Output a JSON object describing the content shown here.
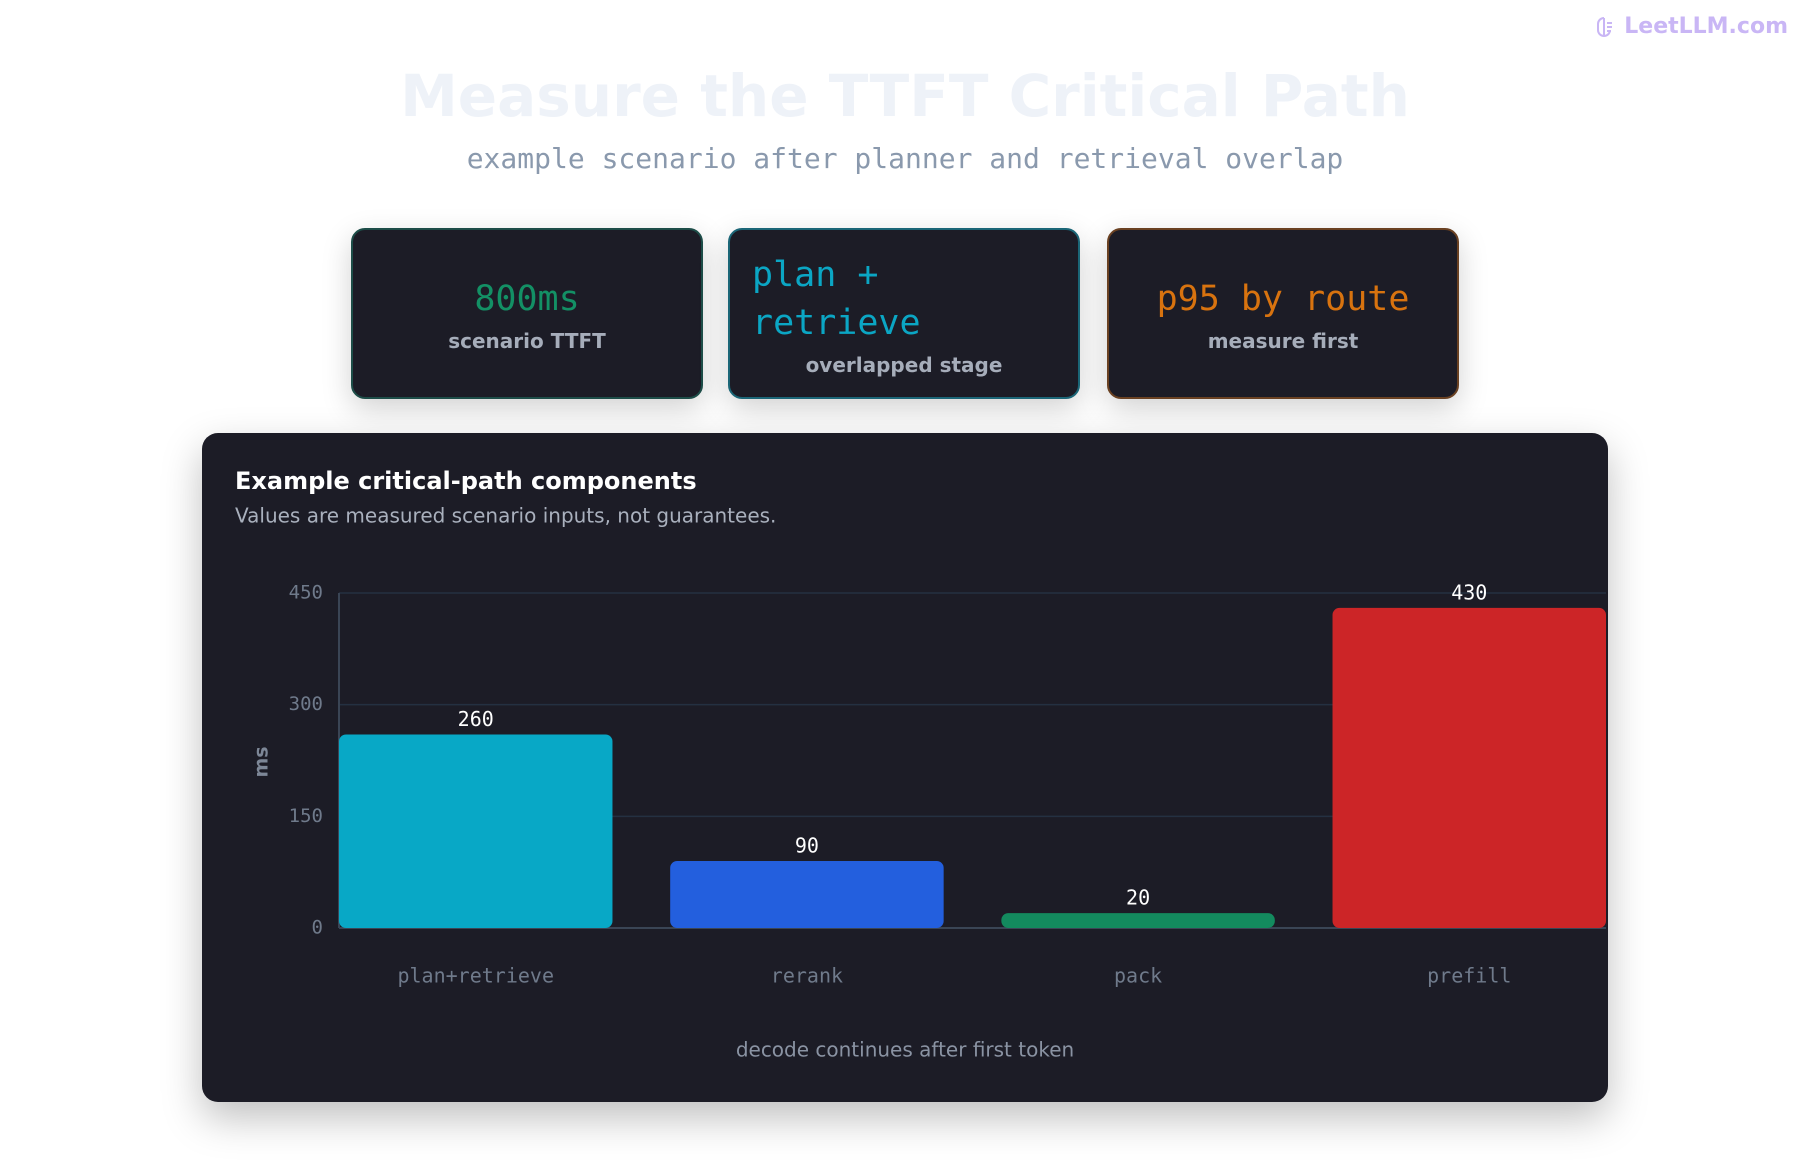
{
  "brand": "LeetLLM.com",
  "header": {
    "title": "Measure the TTFT Critical Path",
    "subtitle": "example scenario after planner and retrieval overlap"
  },
  "cards": [
    {
      "value": "800ms",
      "label": "scenario TTFT",
      "color": "#139065",
      "border": "#1d4d48"
    },
    {
      "value": "plan + retrieve",
      "label": "overlapped stage",
      "color": "#0ba6c4",
      "border": "#1b6677"
    },
    {
      "value": "p95 by route",
      "label": "measure first",
      "color": "#d8730f",
      "border": "#6a4122"
    }
  ],
  "chart_data": {
    "type": "bar",
    "title": "Example critical-path components",
    "subtitle": "Values are measured scenario inputs, not guarantees.",
    "y_label": "ms",
    "categories": [
      "plan+retrieve",
      "rerank",
      "pack",
      "prefill"
    ],
    "values": [
      260,
      90,
      20,
      430
    ],
    "colors": [
      "#08a8c6",
      "#235fde",
      "#138a5e",
      "#cc2527"
    ],
    "ylim": [
      0,
      450
    ],
    "yticks": [
      0,
      150,
      300,
      450
    ],
    "grid": true,
    "note": "decode continues after first token"
  }
}
